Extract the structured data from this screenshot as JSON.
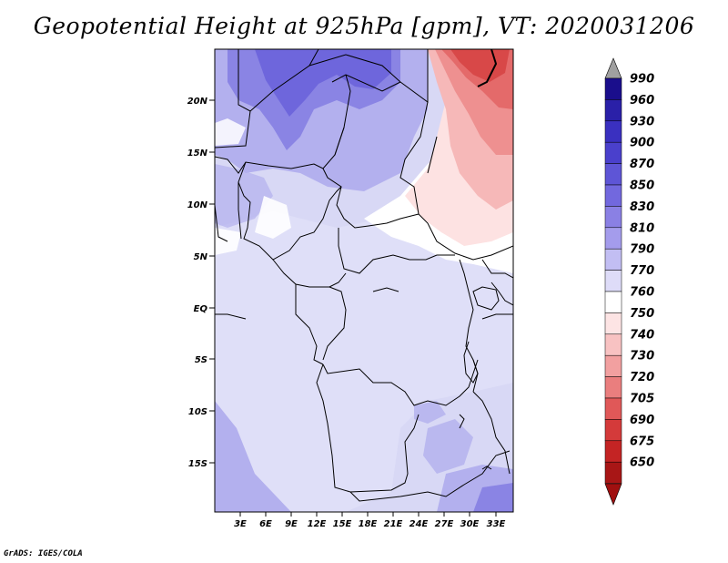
{
  "title": "Geopotential Height at 925hPa [gpm], VT: 2020031206",
  "credit": "GrADS: IGES/COLA",
  "axes": {
    "lat_labels": [
      "20N",
      "15N",
      "10N",
      "5N",
      "EQ",
      "5S",
      "10S",
      "15S"
    ],
    "lon_labels": [
      "3E",
      "6E",
      "9E",
      "12E",
      "15E",
      "18E",
      "21E",
      "24E",
      "27E",
      "30E",
      "33E"
    ]
  },
  "colorbar": {
    "levels": [
      "990",
      "960",
      "930",
      "900",
      "870",
      "850",
      "830",
      "810",
      "790",
      "770",
      "760",
      "750",
      "740",
      "730",
      "720",
      "705",
      "690",
      "675",
      "650"
    ],
    "colors": [
      "#1a0e8c",
      "#2a20a8",
      "#3a30c0",
      "#4a40cc",
      "#5e55d6",
      "#7268de",
      "#8a80e4",
      "#a49cec",
      "#c2bef3",
      "#dedcf8",
      "#ffffff",
      "#fde4e4",
      "#f8c2c2",
      "#f2a0a0",
      "#ea7e7e",
      "#e05858",
      "#d43a3a",
      "#c42424",
      "#a81616"
    ],
    "top_arrow_color": "#a0a0a0",
    "bottom_arrow_color": "#a01010"
  },
  "map_colors": {
    "base": "#d8d8f5",
    "light": "#e6e6fa",
    "mid": "#b3b0ee",
    "dark": "#8a84e4",
    "darker": "#6e66dc",
    "white": "#ffffff",
    "pink1": "#fde2e2",
    "pink2": "#f6b8b8",
    "red1": "#ee9090",
    "red2": "#e46a6a",
    "red3": "#d84848"
  }
}
